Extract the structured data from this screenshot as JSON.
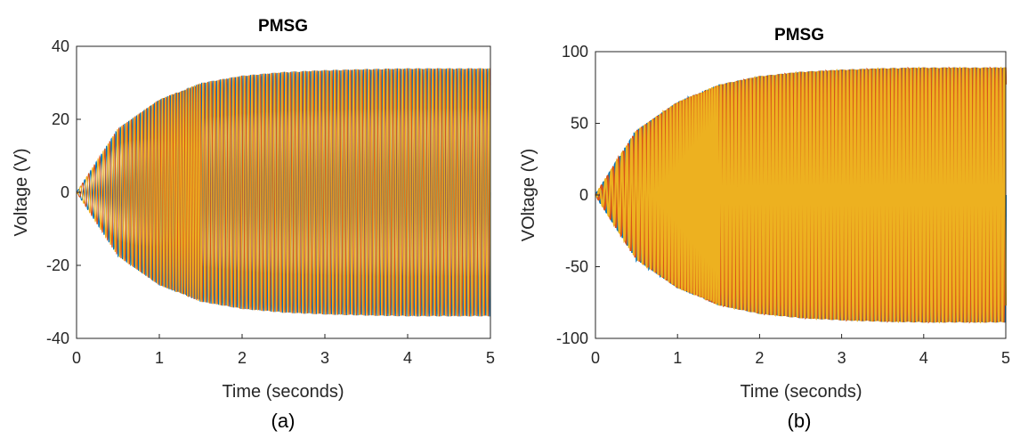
{
  "chart_data": [
    {
      "type": "line",
      "caption": "(a)",
      "title": "PMSG",
      "xlabel": "Time (seconds)",
      "ylabel": "Voltage (V)",
      "xlim": [
        0,
        5
      ],
      "ylim": [
        -40,
        40
      ],
      "xticks": [
        0,
        1,
        2,
        3,
        4,
        5
      ],
      "yticks": [
        -40,
        -20,
        0,
        20,
        40
      ],
      "grid": false,
      "series": [
        {
          "color": "#0072bd",
          "phase_deg": 0
        },
        {
          "color": "#d95319",
          "phase_deg": 120
        },
        {
          "color": "#edb120",
          "phase_deg": 240
        }
      ],
      "envelope": {
        "x": [
          0,
          0.5,
          1,
          1.5,
          2,
          2.5,
          3,
          3.5,
          4,
          4.5,
          5
        ],
        "amplitude": [
          0,
          17.5,
          25.5,
          30,
          32,
          33,
          33.5,
          33.8,
          34,
          34,
          34
        ]
      }
    },
    {
      "type": "line",
      "caption": "(b)",
      "title": "PMSG",
      "xlabel": "Time (seconds)",
      "ylabel": "VOltage (V)",
      "xlim": [
        0,
        5
      ],
      "ylim": [
        -100,
        100
      ],
      "xticks": [
        0,
        1,
        2,
        3,
        4,
        5
      ],
      "yticks": [
        -100,
        -50,
        0,
        50,
        100
      ],
      "grid": false,
      "series": [
        {
          "color": "#0072bd",
          "phase_deg": 0
        },
        {
          "color": "#d95319",
          "phase_deg": 120
        },
        {
          "color": "#edb120",
          "phase_deg": 240
        }
      ],
      "envelope": {
        "x": [
          0,
          0.5,
          1,
          1.5,
          2,
          2.5,
          3,
          3.5,
          4,
          4.5,
          5
        ],
        "amplitude": [
          0,
          45,
          65,
          77,
          83,
          86,
          87.5,
          88.5,
          89,
          89,
          89
        ]
      }
    }
  ]
}
